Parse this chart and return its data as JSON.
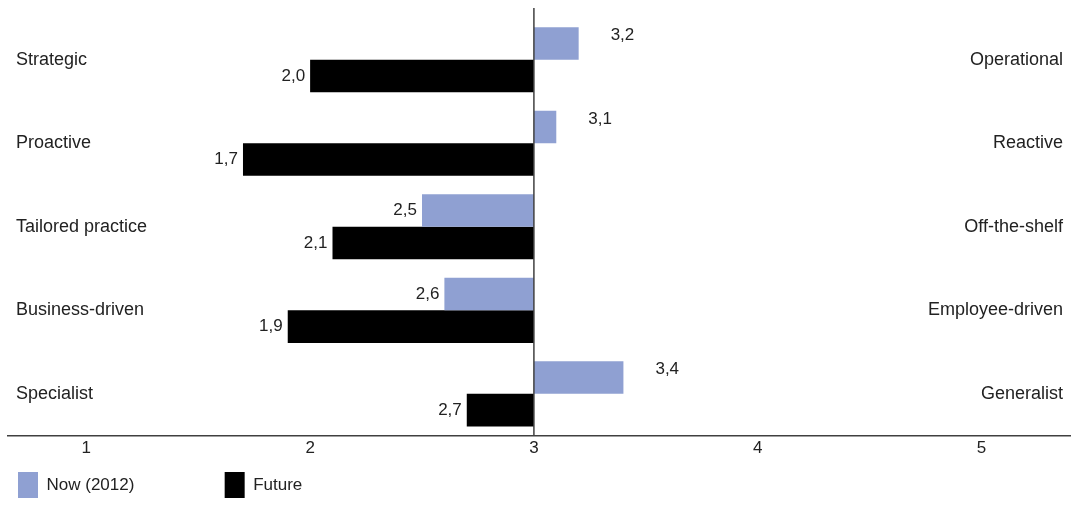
{
  "chart_data": {
    "type": "bar",
    "orientation": "horizontal",
    "categories": [
      "Strategic",
      "Proactive",
      "Tailored practice",
      "Business-driven",
      "Specialist"
    ],
    "series": [
      {
        "name": "Now (2012)",
        "color": "#8fa0d2",
        "base": [
          3,
          3,
          3,
          3,
          3
        ],
        "values": [
          0.2,
          0.1,
          -0.5,
          -0.4,
          0.4
        ],
        "value_labels": [
          "3,2",
          "3,1",
          "2,5",
          "2,6",
          "3,4"
        ]
      },
      {
        "name": "Future",
        "color": "#000000",
        "base": [
          3,
          3,
          3,
          3,
          3
        ],
        "values": [
          -1.0,
          -1.3,
          -0.9,
          -1.1,
          -0.3
        ],
        "value_labels": [
          "2,0",
          "1,7",
          "2,1",
          "1,9",
          "2,7"
        ]
      }
    ],
    "annotations": [
      "Operational",
      "Reactive",
      "Off-the-shelf",
      "Employee-driven",
      "Generalist"
    ],
    "xlim": [
      0.65,
      5.4
    ],
    "xticks": [
      1,
      2,
      3,
      4,
      5
    ],
    "ref_lines": [
      {
        "axis": "x",
        "value": 3,
        "color": "#404040"
      }
    ],
    "tick_labels": "x",
    "grid": false,
    "legend": "bottom left"
  }
}
